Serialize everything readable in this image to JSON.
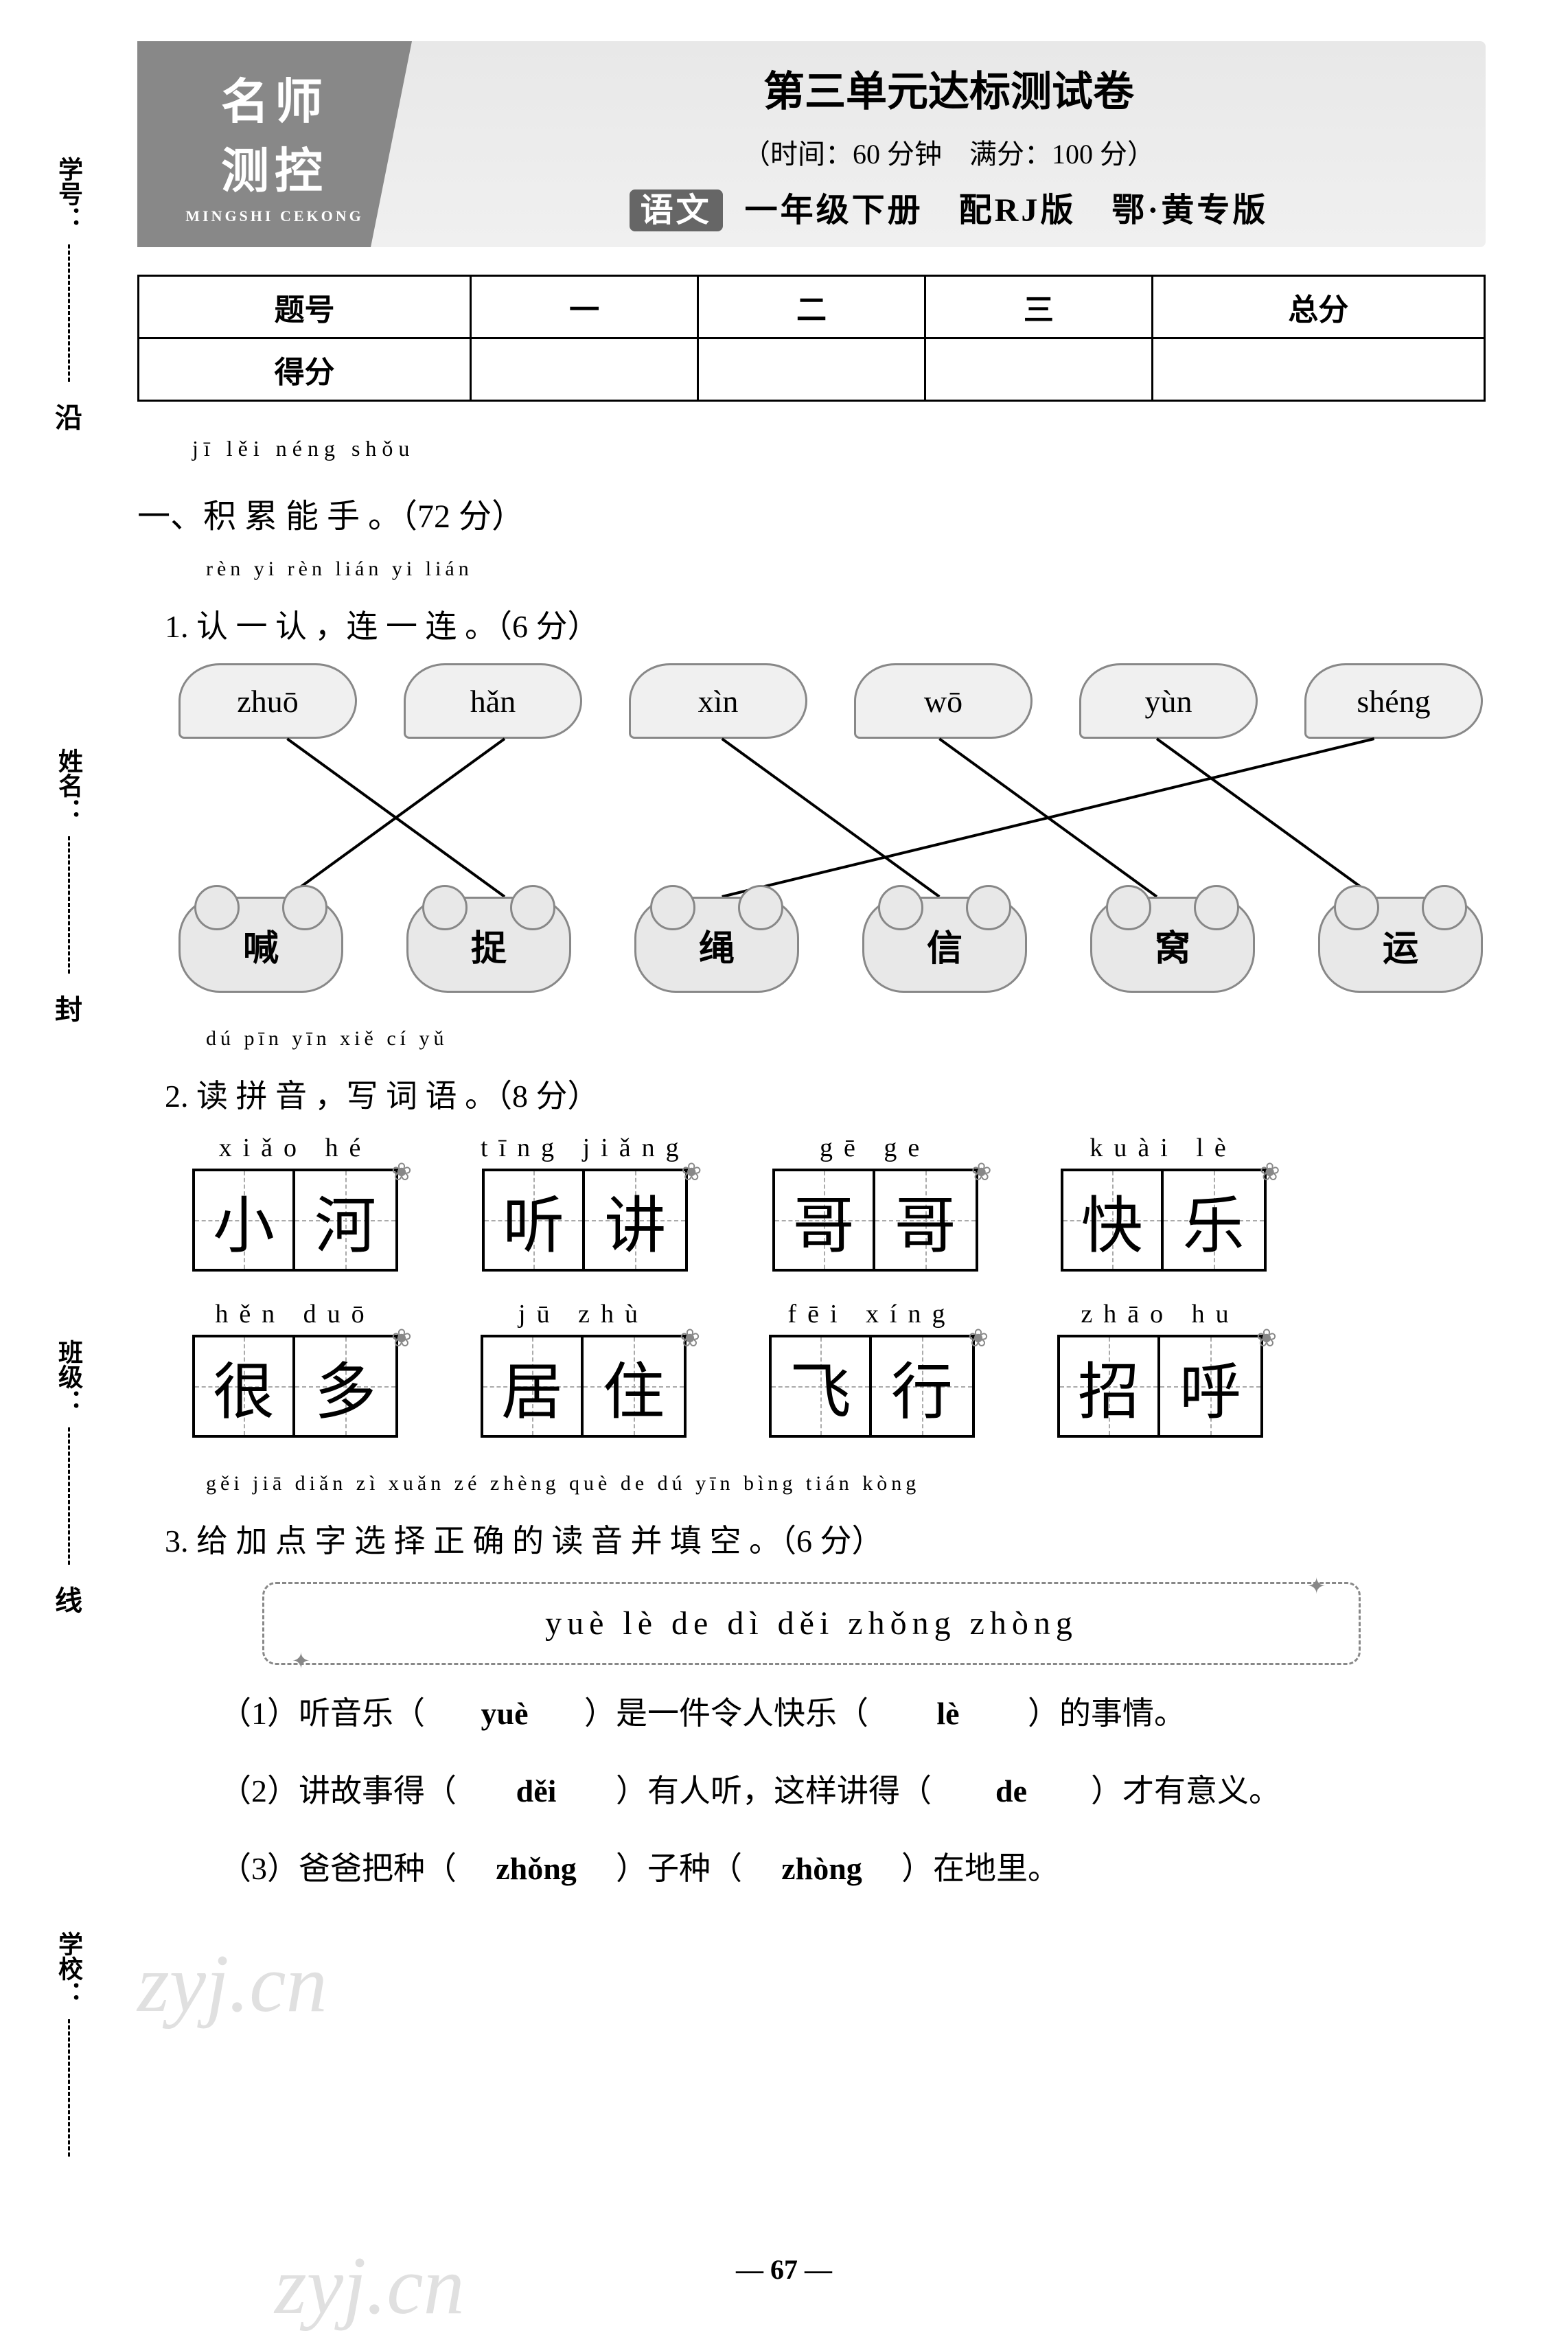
{
  "side": {
    "labels": [
      "学号：",
      "姓名：",
      "班级：",
      "学校："
    ],
    "seals": [
      "沿",
      "封",
      "线"
    ]
  },
  "header": {
    "logo_line1": "名师",
    "logo_line2": "测控",
    "logo_sub": "MINGSHI CEKONG",
    "main_title": "第三单元达标测试卷",
    "time_info": "（时间：60 分钟　满分：100 分）",
    "subject": "语文",
    "book_info": "一年级下册　配RJ版　鄂·黄专版"
  },
  "score_table": {
    "headers": [
      "题号",
      "一",
      "二",
      "三",
      "总分"
    ],
    "row_label": "得分"
  },
  "section1": {
    "pinyin": "jī  lěi néng shǒu",
    "title": "一、积 累 能 手 。（72 分）"
  },
  "q1": {
    "pinyin": "rèn  yi  rèn    lián  yi  lián",
    "title": "1. 认 一 认 ，连 一 连 。（6 分）",
    "leaves": [
      "zhuō",
      "hǎn",
      "xìn",
      "wō",
      "yùn",
      "shéng"
    ],
    "flowers": [
      "喊",
      "捉",
      "绳",
      "信",
      "窝",
      "运"
    ],
    "matches": [
      [
        0,
        1
      ],
      [
        1,
        0
      ],
      [
        2,
        3
      ],
      [
        3,
        4
      ],
      [
        4,
        5
      ],
      [
        5,
        2
      ]
    ],
    "leaf_color": "#f0f0f0",
    "flower_color": "#e8e8e8",
    "line_color": "#000000"
  },
  "q2": {
    "pinyin": "dú  pīn  yīn    xiě  cí  yǔ",
    "title": "2. 读 拼 音 ，写 词 语 。（8 分）",
    "words": [
      {
        "pinyin": "xiǎo  hé",
        "chars": [
          "小",
          "河"
        ]
      },
      {
        "pinyin": "tīng  jiǎng",
        "chars": [
          "听",
          "讲"
        ]
      },
      {
        "pinyin": "gē   ge",
        "chars": [
          "哥",
          "哥"
        ]
      },
      {
        "pinyin": "kuài   lè",
        "chars": [
          "快",
          "乐"
        ]
      },
      {
        "pinyin": "hěn  duō",
        "chars": [
          "很",
          "多"
        ]
      },
      {
        "pinyin": "jū   zhù",
        "chars": [
          "居",
          "住"
        ]
      },
      {
        "pinyin": "fēi  xíng",
        "chars": [
          "飞",
          "行"
        ]
      },
      {
        "pinyin": "zhāo  hu",
        "chars": [
          "招",
          "呼"
        ]
      }
    ]
  },
  "q3": {
    "pinyin": "gěi jiā diǎn zì xuǎn zé zhèng què de dú yīn bìng tián kòng",
    "title": "3. 给 加 点 字 选 择 正 确 的 读 音 并 填 空 。（6 分）",
    "choices": "yuè   lè   de   dì   děi   zhǒng   zhòng",
    "sentences": [
      {
        "pre": "（1）听音乐（　",
        "a1": "yuè",
        "mid": "　）是一件令人快乐（　",
        "a2": "lè",
        "post": "　）的事情。"
      },
      {
        "pre": "（2）讲故事得（　",
        "a1": "děi",
        "mid": "　）有人听，这样讲得（　",
        "a2": "de",
        "post": "　）才有意义。"
      },
      {
        "pre": "（3）爸爸把种（　",
        "a1": "zhǒng",
        "mid": "　）子种（　",
        "a2": "zhòng",
        "post": "　）在地里。"
      }
    ]
  },
  "page_num": "— 67 —",
  "watermark": "zyj.cn"
}
